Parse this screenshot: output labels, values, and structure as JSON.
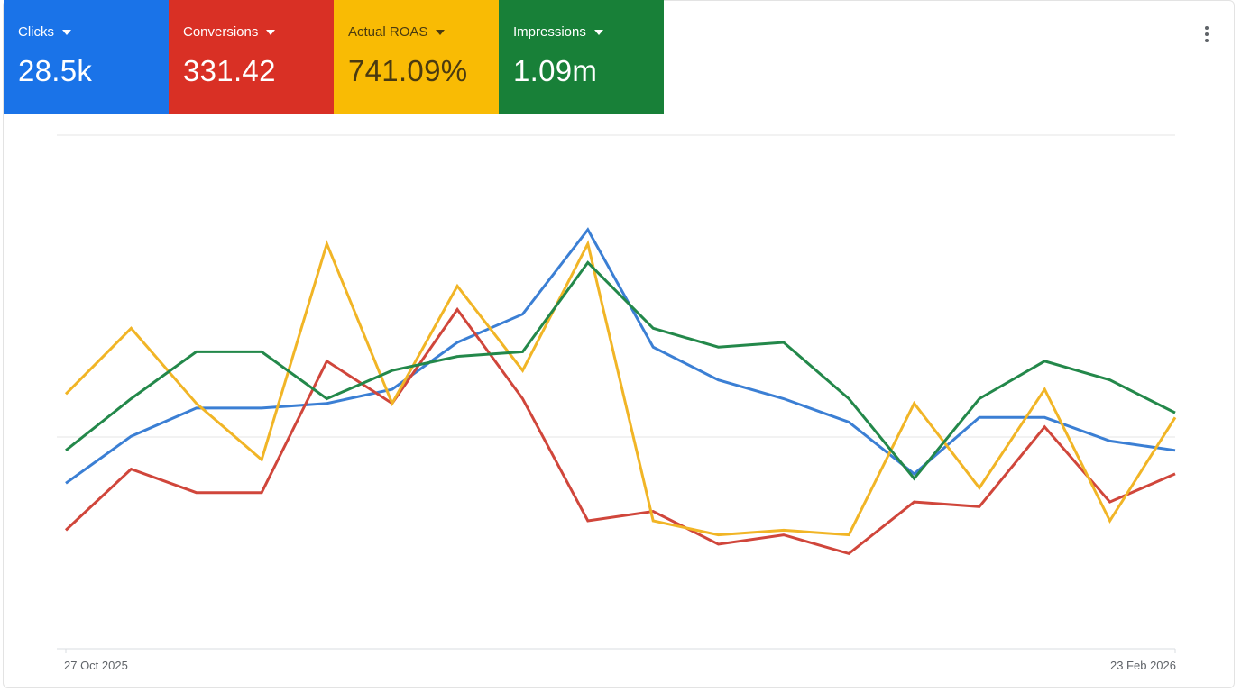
{
  "metric_tabs": [
    {
      "label": "Clicks",
      "value": "28.5k",
      "color": "#1a73e8"
    },
    {
      "label": "Conversions",
      "value": "331.42",
      "color": "#d93025"
    },
    {
      "label": "Actual ROAS",
      "value": "741.09%",
      "color": "#f9bb04"
    },
    {
      "label": "Impressions",
      "value": "1.09m",
      "color": "#188038"
    }
  ],
  "menu_icon": "more-vert-icon",
  "chart_data": {
    "type": "line",
    "x_start_label": "27 Oct 2025",
    "x_end_label": "23 Feb 2026",
    "y_normalized": true,
    "ylim": [
      0,
      1
    ],
    "grid": true,
    "series": [
      {
        "name": "Clicks",
        "color": "#3b7fd4",
        "values": [
          0.32,
          0.42,
          0.48,
          0.48,
          0.49,
          0.52,
          0.62,
          0.68,
          0.86,
          0.61,
          0.54,
          0.5,
          0.45,
          0.34,
          0.46,
          0.46,
          0.41,
          0.39
        ]
      },
      {
        "name": "Conversions",
        "color": "#d0463b",
        "values": [
          0.22,
          0.35,
          0.3,
          0.3,
          0.58,
          0.49,
          0.69,
          0.5,
          0.24,
          0.26,
          0.19,
          0.21,
          0.17,
          0.28,
          0.27,
          0.44,
          0.28,
          0.34
        ]
      },
      {
        "name": "Actual ROAS",
        "color": "#f1b526",
        "values": [
          0.51,
          0.65,
          0.49,
          0.37,
          0.83,
          0.49,
          0.74,
          0.56,
          0.83,
          0.24,
          0.21,
          0.22,
          0.21,
          0.49,
          0.31,
          0.52,
          0.24,
          0.46
        ]
      },
      {
        "name": "Impressions",
        "color": "#23884a",
        "values": [
          0.39,
          0.5,
          0.6,
          0.6,
          0.5,
          0.56,
          0.59,
          0.6,
          0.79,
          0.65,
          0.61,
          0.62,
          0.5,
          0.33,
          0.5,
          0.58,
          0.54,
          0.47
        ]
      }
    ]
  }
}
